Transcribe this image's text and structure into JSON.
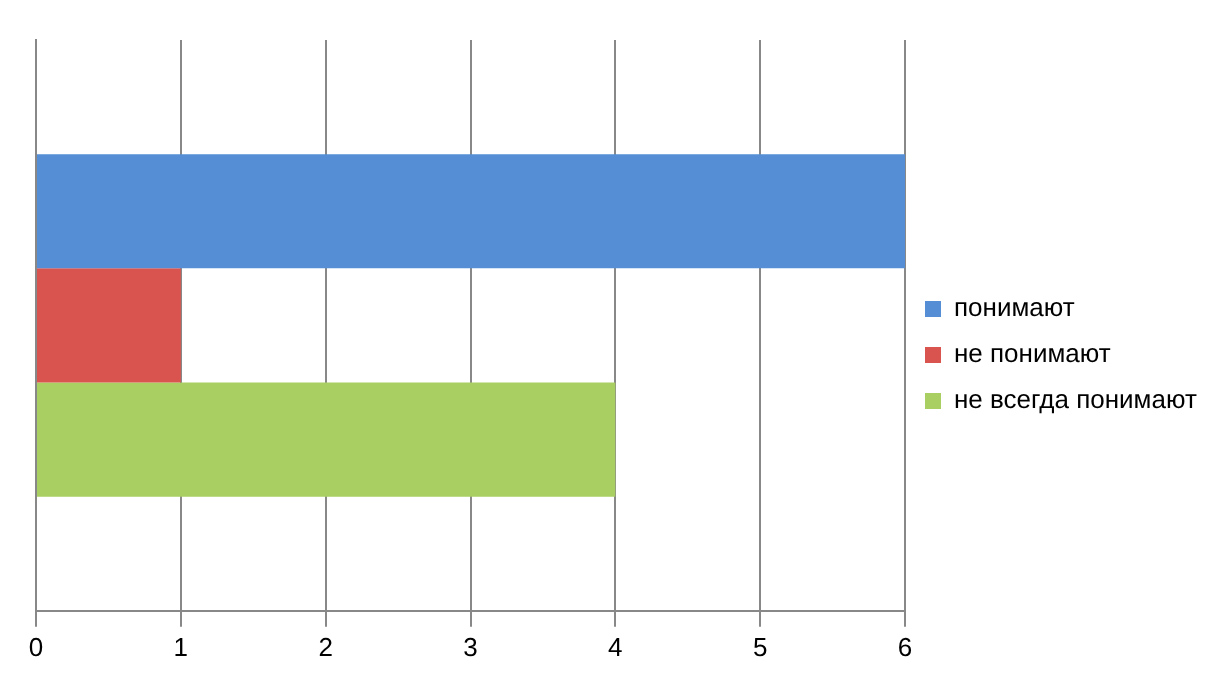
{
  "chart_data": {
    "type": "bar",
    "orientation": "horizontal",
    "categories": [
      null
    ],
    "series": [
      {
        "name": "понимают",
        "color": "#558ed5",
        "values": [
          6
        ]
      },
      {
        "name": "не понимают",
        "color": "#d9534f",
        "values": [
          1
        ]
      },
      {
        "name": "не всегда понимают",
        "color": "#a9cf62",
        "values": [
          4
        ]
      }
    ],
    "xlim": [
      0,
      6
    ],
    "xticks": [
      0,
      1,
      2,
      3,
      4,
      5,
      6
    ],
    "grid": "x",
    "legend": "right",
    "tick_labels": "x"
  }
}
